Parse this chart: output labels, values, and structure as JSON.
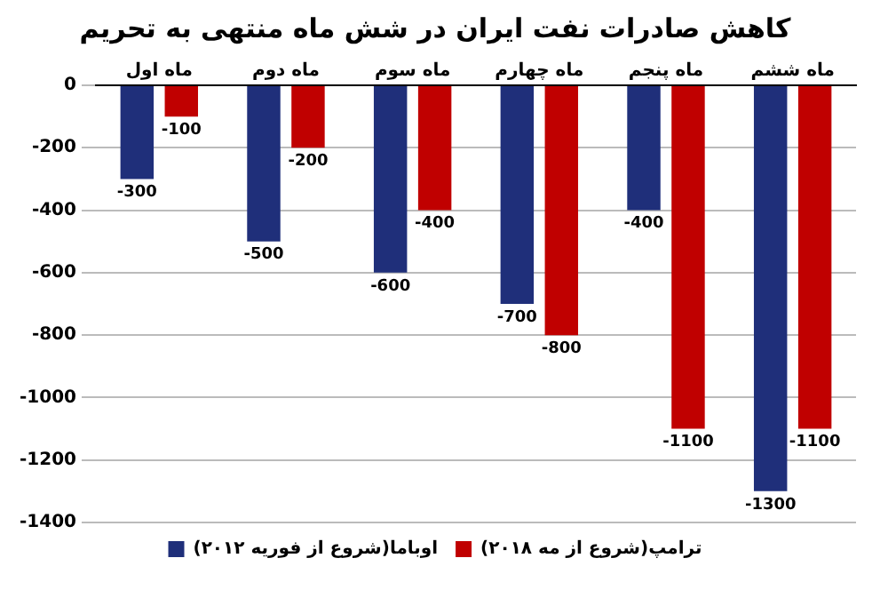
{
  "chart_data": {
    "type": "bar",
    "title": "کاهش صادرات نفت ایران در شش ماه منتهی به تحریم",
    "categories": [
      "ماه اول",
      "ماه دوم",
      "ماه سوم",
      "ماه چهارم",
      "ماه پنجم",
      "ماه ششم"
    ],
    "series": [
      {
        "name": "اوباما(شروع از فوریه ۲۰۱۲)",
        "color": "#1f2f7a",
        "values": [
          -300,
          -500,
          -600,
          -700,
          -400,
          -1300
        ]
      },
      {
        "name": "ترامپ(شروع از مه ۲۰۱۸)",
        "color": "#c00000",
        "values": [
          -100,
          -200,
          -400,
          -800,
          -1100,
          -1100
        ]
      }
    ],
    "ylim": [
      -1400,
      0
    ],
    "yticks": [
      -1400,
      -1200,
      -1000,
      -800,
      -600,
      -400,
      -200,
      0
    ],
    "grid": "y",
    "legend": "bottom",
    "data_labels": true
  }
}
